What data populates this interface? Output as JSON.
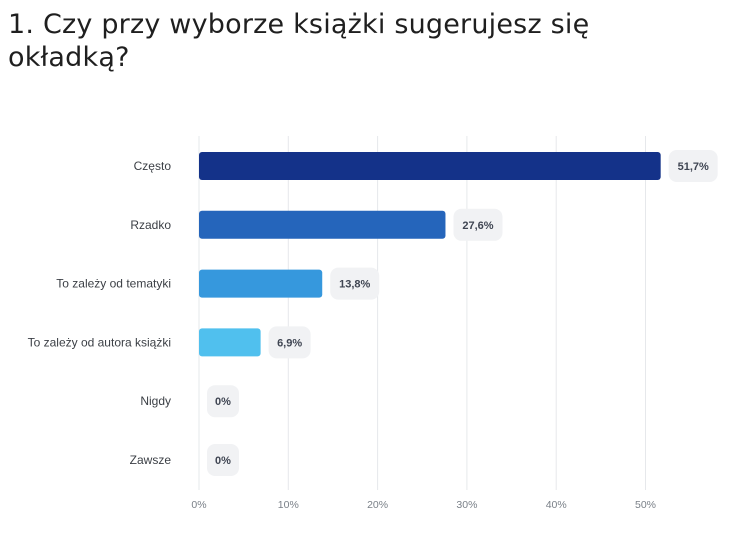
{
  "question": {
    "title": "1. Czy przy wyborze książki sugerujesz się okładką?"
  },
  "chart_data": {
    "type": "bar",
    "orientation": "horizontal",
    "title": "1. Czy przy wyborze książki sugerujesz się okładką?",
    "xlabel": "",
    "ylabel": "",
    "xlim": [
      0,
      50
    ],
    "grid": true,
    "categories": [
      "Często",
      "Rzadko",
      "To zależy od tematyki",
      "To zależy od autora książki",
      "Nigdy",
      "Zawsze"
    ],
    "values": [
      51.7,
      27.6,
      13.8,
      6.9,
      0,
      0
    ],
    "value_labels": [
      "51,7%",
      "27,6%",
      "13,8%",
      "6,9%",
      "0%",
      "0%"
    ],
    "bar_colors": [
      "#143289",
      "#2565bb",
      "#3698dd",
      "#50c0ee",
      "#50c0ee",
      "#50c0ee"
    ],
    "ticks": [
      0,
      10,
      20,
      30,
      40,
      50
    ],
    "tick_labels": [
      "0%",
      "10%",
      "20%",
      "30%",
      "40%",
      "50%"
    ]
  }
}
